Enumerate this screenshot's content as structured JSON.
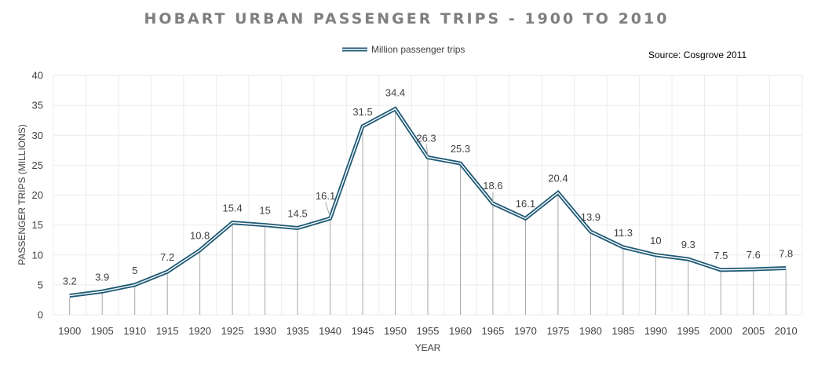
{
  "chart_data": {
    "type": "line",
    "title": "HOBART URBAN PASSENGER TRIPS - 1900 TO 2010",
    "xlabel": "YEAR",
    "ylabel": "PASSENGER TRIPS (MILLIONS)",
    "source": "Source: Cosgrove 2011",
    "ylim": [
      0,
      40
    ],
    "yticks": [
      0,
      5,
      10,
      15,
      20,
      25,
      30,
      35,
      40
    ],
    "grid": true,
    "legend_position": "top-center",
    "categories": [
      "1900",
      "1905",
      "1910",
      "1915",
      "1920",
      "1925",
      "1930",
      "1935",
      "1940",
      "1945",
      "1950",
      "1955",
      "1960",
      "1965",
      "1970",
      "1975",
      "1980",
      "1985",
      "1990",
      "1995",
      "2000",
      "2005",
      "2010"
    ],
    "series": [
      {
        "name": "Million passenger trips",
        "color": "#1f5a75",
        "values": [
          3.2,
          3.9,
          5,
          7.2,
          10.8,
          15.4,
          15,
          14.5,
          16.1,
          31.5,
          34.4,
          26.3,
          25.3,
          18.6,
          16.1,
          20.4,
          13.9,
          11.3,
          10,
          9.3,
          7.5,
          7.6,
          7.8
        ]
      }
    ]
  }
}
